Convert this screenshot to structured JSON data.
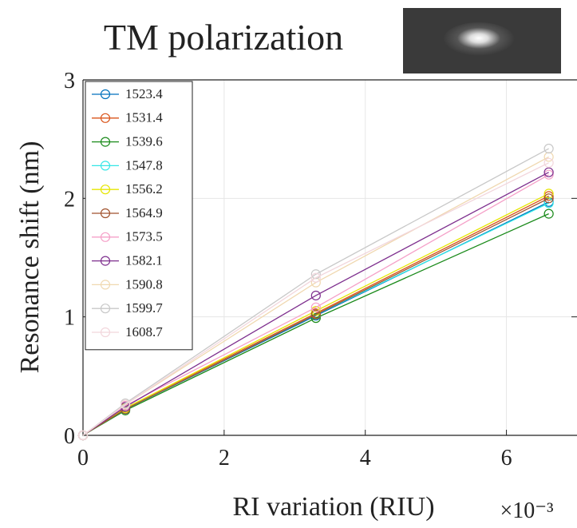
{
  "chart_data": {
    "type": "line",
    "title": "TM polarization",
    "x_label": "RI variation (RIU)",
    "y_label": "Resonance shift (nm)",
    "x_scale_label": "×10⁻³",
    "x": [
      0,
      0.6,
      3.3,
      6.6
    ],
    "xlim": [
      0,
      7
    ],
    "ylim": [
      0,
      3
    ],
    "xticks": [
      0,
      2,
      4,
      6
    ],
    "yticks": [
      0,
      1,
      2,
      3
    ],
    "grid": true,
    "legend": "upper-left",
    "series": [
      {
        "name": "1523.4",
        "color": "#0072BD",
        "values": [
          0,
          0.22,
          1.01,
          1.97
        ]
      },
      {
        "name": "1531.4",
        "color": "#D95319",
        "values": [
          0,
          0.23,
          1.03,
          2.02
        ]
      },
      {
        "name": "1539.6",
        "color": "#1a8a1a",
        "values": [
          0,
          0.21,
          0.99,
          1.87
        ]
      },
      {
        "name": "1547.8",
        "color": "#33e6e6",
        "values": [
          0,
          0.22,
          1.02,
          1.96
        ]
      },
      {
        "name": "1556.2",
        "color": "#e6e600",
        "values": [
          0,
          0.23,
          1.05,
          2.04
        ]
      },
      {
        "name": "1564.9",
        "color": "#A0522D",
        "values": [
          0,
          0.22,
          1.02,
          2.0
        ]
      },
      {
        "name": "1573.5",
        "color": "#f5a0c8",
        "values": [
          0,
          0.25,
          1.08,
          2.2
        ]
      },
      {
        "name": "1582.1",
        "color": "#7E2F8E",
        "values": [
          0,
          0.24,
          1.18,
          2.22
        ]
      },
      {
        "name": "1590.8",
        "color": "#f0d8b0",
        "values": [
          0,
          0.26,
          1.29,
          2.35
        ]
      },
      {
        "name": "1599.7",
        "color": "#c8c8c8",
        "values": [
          0,
          0.27,
          1.36,
          2.42
        ]
      },
      {
        "name": "1608.7",
        "color": "#f2d6dc",
        "values": [
          0,
          0.26,
          1.33,
          2.3
        ]
      }
    ]
  }
}
